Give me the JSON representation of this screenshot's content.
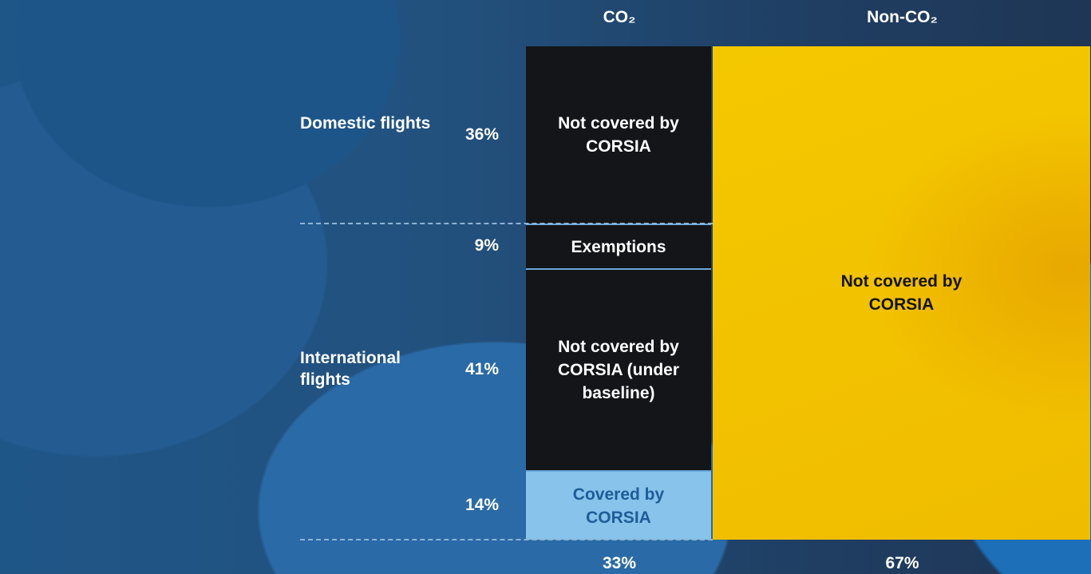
{
  "chart_data": {
    "type": "mekko",
    "columns": [
      {
        "name": "CO₂",
        "value": 33,
        "value_label": "33%",
        "segments": [
          {
            "label": "Not covered by CORSIA",
            "value": 36,
            "value_label": "36%",
            "group": "Domestic flights",
            "color": "#131518",
            "text_color": "#ffffff"
          },
          {
            "label": "Exemptions",
            "value": 9,
            "value_label": "9%",
            "color": "#131518",
            "text_color": "#ffffff"
          },
          {
            "label": "Not covered by CORSIA (under baseline)",
            "value": 41,
            "value_label": "41%",
            "group": "International flights",
            "color": "#131518",
            "text_color": "#ffffff"
          },
          {
            "label": "Covered by CORSIA",
            "value": 14,
            "value_label": "14%",
            "color": "#87c3ea",
            "text_color": "#1f5c98"
          }
        ]
      },
      {
        "name": "Non-CO₂",
        "value": 67,
        "value_label": "67%",
        "segments": [
          {
            "label": "Not covered by CORSIA",
            "color": "#f3c300",
            "text_color": "#141414"
          }
        ]
      }
    ]
  }
}
